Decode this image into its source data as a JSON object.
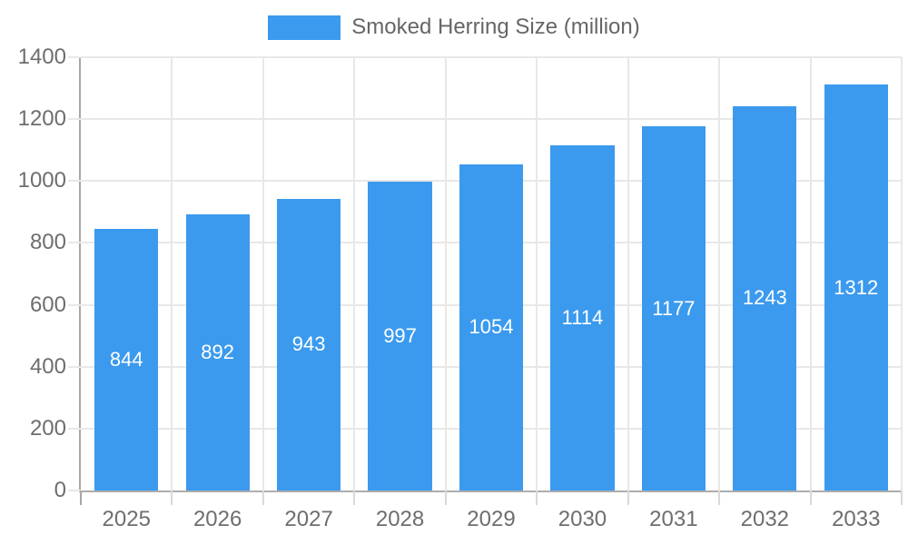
{
  "legend": {
    "position": "top",
    "label": "Smoked Herring Size (million)"
  },
  "colors": {
    "bar": "#3B9AEE",
    "value_label": "#ffffff",
    "axis_text": "#6e6e6e",
    "legend_text": "#666666"
  },
  "chart_data": {
    "type": "bar",
    "title": "",
    "xlabel": "",
    "ylabel": "",
    "series_name": "Smoked Herring Size (million)",
    "categories": [
      "2025",
      "2026",
      "2027",
      "2028",
      "2029",
      "2030",
      "2031",
      "2032",
      "2033"
    ],
    "values": [
      844,
      892,
      943,
      997,
      1054,
      1114,
      1177,
      1243,
      1312
    ],
    "value_labels": [
      "844",
      "892",
      "943",
      "997",
      "1054",
      "1114",
      "1177",
      "1243",
      "1312"
    ],
    "ylim": [
      0,
      1400
    ],
    "yticks": [
      0,
      200,
      400,
      600,
      800,
      1000,
      1200,
      1400
    ],
    "grid": true,
    "legend_position": "top",
    "bar_color": "#3B9AEE"
  }
}
